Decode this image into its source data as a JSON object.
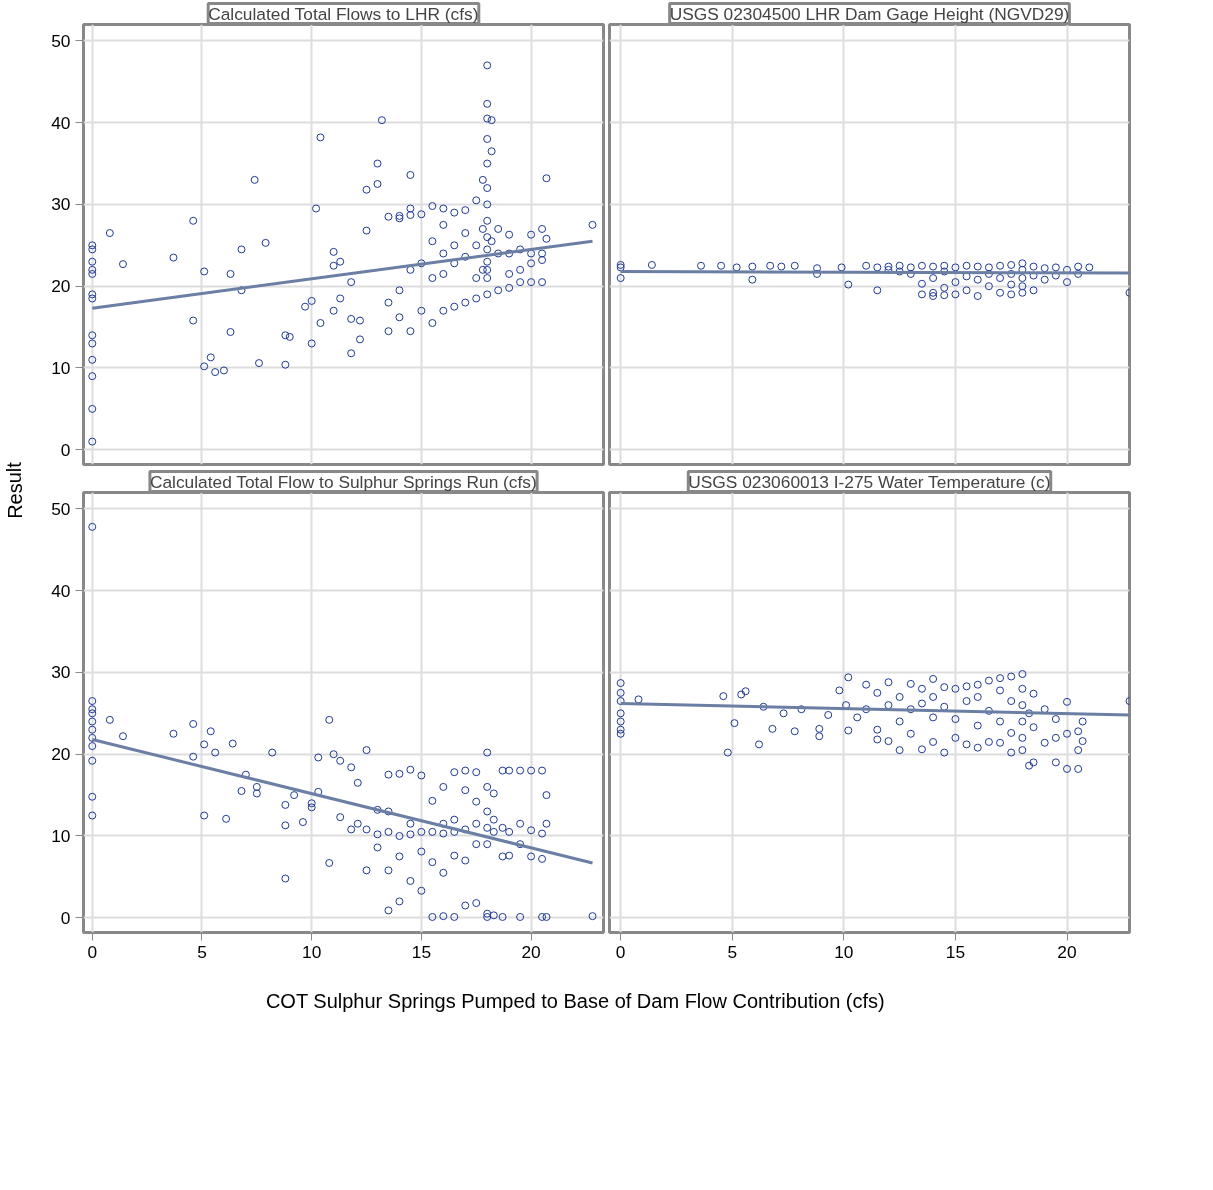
{
  "chart_data": [
    {
      "type": "scatter",
      "title": "Calculated Total Flows to LHR (cfs)",
      "ylabel": "Result",
      "marker": "circle",
      "xlim": [
        -0.4,
        23.3
      ],
      "ylim": [
        -1.8,
        52
      ],
      "xticks": [
        0,
        5,
        10,
        15,
        20
      ],
      "yticks": [
        0,
        10,
        20,
        30,
        40,
        50
      ],
      "grid": true,
      "tick_labels": "y",
      "series": [
        {
          "color": "#1f3a93",
          "x": [
            0,
            0,
            0,
            0,
            0,
            0,
            0,
            0,
            0,
            0,
            0,
            0,
            0,
            0.8,
            1.4,
            3.7,
            4.6,
            4.6,
            5.1,
            5.1,
            5.4,
            5.6,
            6,
            6.3,
            6.3,
            6.8,
            6.8,
            7.4,
            7.6,
            7.9,
            8.8,
            8.8,
            9,
            9.7,
            10,
            10,
            10.2,
            10.4,
            10.4,
            11,
            11,
            11,
            11.3,
            11.3,
            11.8,
            11.8,
            11.8,
            12.2,
            12.2,
            12.5,
            12.5,
            13,
            13,
            13.2,
            13.5,
            13.5,
            13.5,
            14,
            14,
            14,
            14,
            14.5,
            14.5,
            14.5,
            14.5,
            14.5,
            15,
            15,
            15,
            15.5,
            15.5,
            15.5,
            15.5,
            16,
            16,
            16,
            16,
            16,
            16.5,
            16.5,
            16.5,
            16.5,
            17,
            17,
            17,
            17,
            17.5,
            17.5,
            17.5,
            17.5,
            17.8,
            17.8,
            17.8,
            18,
            18,
            18,
            18,
            18,
            18,
            18,
            18,
            18,
            18,
            18,
            18,
            18,
            18,
            18.2,
            18.2,
            18.2,
            18.5,
            18.5,
            18.5,
            19,
            19,
            19,
            19,
            19.5,
            19.5,
            19.5,
            20,
            20,
            20,
            20,
            20.5,
            20.5,
            20.5,
            20.5,
            20.7,
            20.7,
            22.8
          ],
          "values": [
            25,
            24.5,
            23,
            22,
            21.5,
            19,
            18.5,
            14,
            13,
            11,
            9,
            5,
            1,
            26.5,
            22.7,
            23.5,
            28,
            15.8,
            21.8,
            10.2,
            11.3,
            9.5,
            9.7,
            21.5,
            14.4,
            19.5,
            24.5,
            33,
            10.6,
            25.3,
            14,
            10.4,
            13.8,
            17.5,
            18.2,
            13,
            29.5,
            38.2,
            15.5,
            24.2,
            22.5,
            17,
            23,
            18.5,
            20.5,
            11.8,
            16,
            15.8,
            13.5,
            31.8,
            26.8,
            35,
            32.5,
            40.3,
            28.5,
            18,
            14.5,
            28.3,
            28.6,
            19.5,
            16.2,
            28.7,
            29.5,
            33.6,
            22,
            14.5,
            28.8,
            22.8,
            17,
            29.8,
            25.5,
            21,
            15.5,
            29.5,
            27.5,
            24,
            21.5,
            17,
            29,
            25,
            22.8,
            17.5,
            29.3,
            26.5,
            23.6,
            18,
            30.5,
            25,
            21,
            18.5,
            33,
            27,
            22,
            47,
            42.3,
            40.5,
            38,
            35,
            32,
            30,
            28,
            26,
            24.5,
            23,
            22,
            21,
            19,
            40.3,
            36.5,
            25.5,
            24,
            19.5,
            27,
            26.3,
            24,
            21.5,
            19.8,
            24.5,
            22,
            20.5,
            26.3,
            24,
            20.5,
            22.8,
            27,
            24,
            20.5,
            23.2,
            33.2,
            25.8,
            27.5
          ]
        },
        {
          "type": "line",
          "color": "#6a7fa3",
          "x": [
            0,
            22.8
          ],
          "values": [
            17.3,
            25.5
          ],
          "marker": "none"
        }
      ]
    },
    {
      "type": "scatter",
      "title": "USGS 02304500 LHR Dam Gage Height (NGVD29)",
      "marker": "circle",
      "xlim": [
        -0.5,
        22.8
      ],
      "ylim": [
        -1.8,
        52
      ],
      "xticks": [
        0,
        5,
        10,
        15,
        20
      ],
      "yticks": [
        0,
        10,
        20,
        30,
        40,
        50
      ],
      "grid": true,
      "tick_labels": false,
      "series": [
        {
          "color": "#1f3a93",
          "x": [
            0,
            0,
            0,
            1.4,
            3.6,
            4.5,
            5.2,
            5.9,
            5.9,
            6.7,
            7.2,
            7.8,
            8.8,
            8.8,
            9.9,
            10.2,
            11,
            11.5,
            11.5,
            12,
            12,
            12.5,
            12.5,
            13,
            13,
            13.5,
            13.5,
            13.5,
            14,
            14,
            14,
            14,
            14.5,
            14.5,
            14.5,
            14.5,
            15,
            15,
            15,
            15.5,
            15.5,
            15.5,
            16,
            16,
            16,
            16.5,
            16.5,
            16.5,
            17,
            17,
            17,
            17.5,
            17.5,
            17.5,
            17.5,
            18,
            18,
            18,
            18,
            18,
            18.5,
            18.5,
            18.5,
            19,
            19,
            19.5,
            19.5,
            20,
            20,
            20.5,
            20.5,
            21,
            22.8
          ],
          "values": [
            22.6,
            22.3,
            21,
            22.6,
            22.5,
            22.5,
            22.3,
            20.8,
            22.4,
            22.5,
            22.4,
            22.5,
            22.2,
            21.5,
            22.3,
            20.2,
            22.5,
            19.5,
            22.3,
            22.4,
            22,
            21.8,
            22.5,
            22.3,
            21.5,
            22.5,
            20.3,
            19,
            22.4,
            21,
            19.2,
            18.8,
            22.5,
            21.8,
            19.8,
            18.9,
            22.3,
            20.5,
            19,
            22.5,
            21.2,
            19.5,
            22.4,
            20.8,
            18.8,
            22.3,
            21.5,
            20,
            22.5,
            21,
            19.2,
            22.6,
            21.5,
            20.2,
            19,
            22.8,
            22,
            21,
            20,
            19.2,
            22.4,
            21.3,
            19.5,
            22.2,
            20.8,
            22.3,
            21.3,
            22,
            20.5,
            22.4,
            21.5,
            22.3,
            19.2
          ]
        },
        {
          "type": "line",
          "color": "#6a7fa3",
          "x": [
            0,
            22.8
          ],
          "values": [
            21.8,
            21.6
          ],
          "marker": "none"
        }
      ]
    },
    {
      "type": "scatter",
      "title": "Calculated Total Flow to Sulphur Springs Run (cfs)",
      "marker": "circle",
      "xlabel": "COT Sulphur Springs Pumped to Base of Dam Flow Contribution (cfs)",
      "xlim": [
        -0.4,
        23.3
      ],
      "ylim": [
        -1.8,
        52
      ],
      "xticks": [
        0,
        5,
        10,
        15,
        20
      ],
      "yticks": [
        0,
        10,
        20,
        30,
        40,
        50
      ],
      "grid": true,
      "series": [
        {
          "color": "#1f3a93",
          "x": [
            0,
            0,
            0,
            0,
            0,
            0,
            0,
            0,
            0,
            0,
            0,
            0.8,
            1.4,
            3.7,
            4.6,
            4.6,
            5.1,
            5.1,
            5.4,
            5.6,
            6.1,
            6.4,
            6.8,
            7,
            7.5,
            7.5,
            8.2,
            8.8,
            8.8,
            8.8,
            9.2,
            9.6,
            10,
            10,
            10.3,
            10.3,
            10.8,
            10.8,
            11,
            11.3,
            11.3,
            11.8,
            11.8,
            12.1,
            12.1,
            12.5,
            12.5,
            12.5,
            13,
            13,
            13,
            13.5,
            13.5,
            13.5,
            13.5,
            13.5,
            14,
            14,
            14,
            14,
            14.5,
            14.5,
            14.5,
            14.5,
            15,
            15,
            15,
            15,
            15.5,
            15.5,
            15.5,
            15.5,
            16,
            16,
            16,
            16,
            16,
            16.5,
            16.5,
            16.5,
            16.5,
            16.5,
            17,
            17,
            17,
            17,
            17,
            17.5,
            17.5,
            17.5,
            17.5,
            17.5,
            18,
            18,
            18,
            18,
            18,
            18,
            18,
            18.3,
            18.3,
            18.3,
            18.3,
            18.7,
            18.7,
            18.7,
            18.7,
            19,
            19,
            19,
            19.5,
            19.5,
            19.5,
            19.5,
            20,
            20,
            20,
            20.5,
            20.5,
            20.5,
            20.5,
            20.7,
            20.7,
            20.7,
            22.8
          ],
          "values": [
            47.8,
            26.5,
            25.5,
            25,
            24,
            23,
            22,
            21,
            19.2,
            14.8,
            12.5,
            24.2,
            22.2,
            22.5,
            23.7,
            19.7,
            21.2,
            12.5,
            22.8,
            20.2,
            12.1,
            21.3,
            15.5,
            17.5,
            16,
            15.2,
            20.2,
            13.8,
            11.3,
            4.8,
            15,
            11.7,
            14,
            13.5,
            19.6,
            15.4,
            6.7,
            24.2,
            20,
            19.2,
            12.3,
            18.4,
            10.8,
            16.5,
            11.5,
            20.5,
            10.8,
            5.8,
            13.2,
            10.2,
            8.6,
            17.5,
            13,
            10.5,
            5.8,
            0.9,
            17.6,
            10,
            7.5,
            2,
            18.1,
            11.5,
            10.2,
            4.5,
            17.4,
            10.5,
            8.1,
            3.3,
            14.3,
            10.5,
            6.8,
            0.1,
            16,
            11.5,
            10.3,
            5.5,
            0.2,
            17.8,
            12,
            10.5,
            7.6,
            0.1,
            18,
            15.6,
            10.8,
            7,
            1.5,
            17.8,
            14.2,
            11.5,
            9,
            1.8,
            20.2,
            16,
            13,
            11,
            9,
            0.5,
            0.1,
            15.2,
            12,
            10.5,
            0.3,
            18,
            11,
            7.5,
            0.1,
            18,
            10.5,
            7.6,
            18,
            11.5,
            9,
            0.1,
            18,
            10.7,
            7.5,
            18,
            10.3,
            7.2,
            0.1,
            15,
            11.5,
            0.1,
            0.2
          ]
        },
        {
          "type": "line",
          "color": "#6a7fa3",
          "x": [
            0,
            22.8
          ],
          "values": [
            21.8,
            6.7
          ],
          "marker": "none"
        }
      ]
    },
    {
      "type": "scatter",
      "title": "USGS 023060013 I-275 Water Temperature (c)",
      "marker": "circle",
      "xlim": [
        -0.5,
        22.8
      ],
      "ylim": [
        -1.8,
        52
      ],
      "xticks": [
        0,
        5,
        10,
        15,
        20
      ],
      "yticks": [
        0,
        10,
        20,
        30,
        40,
        50
      ],
      "grid": true,
      "tick_labels": "x",
      "series": [
        {
          "color": "#1f3a93",
          "x": [
            0,
            0,
            0,
            0,
            0,
            0,
            0,
            0.8,
            4.6,
            4.8,
            5.1,
            5.4,
            5.6,
            6.2,
            6.4,
            6.8,
            7.3,
            7.8,
            8.1,
            8.9,
            8.9,
            9.3,
            9.8,
            10.1,
            10.2,
            10.2,
            10.6,
            11,
            11,
            11.5,
            11.5,
            11.5,
            12,
            12,
            12,
            12.5,
            12.5,
            12.5,
            13,
            13,
            13,
            13.5,
            13.5,
            13.5,
            14,
            14,
            14,
            14,
            14.5,
            14.5,
            14.5,
            15,
            15,
            15,
            15.5,
            15.5,
            15.5,
            16,
            16,
            16,
            16,
            16.5,
            16.5,
            16.5,
            17,
            17,
            17,
            17,
            17.5,
            17.5,
            17.5,
            17.5,
            18,
            18,
            18,
            18,
            18,
            18,
            18.3,
            18.3,
            18.5,
            18.5,
            18.5,
            19,
            19,
            19.5,
            19.5,
            19.5,
            20,
            20,
            20,
            20.5,
            20.5,
            20.5,
            20.7,
            20.7,
            22.8
          ],
          "values": [
            28.7,
            27.5,
            26.5,
            25,
            24,
            23,
            22.5,
            26.7,
            27.1,
            20.2,
            23.8,
            27.3,
            27.7,
            21.2,
            25.8,
            23.1,
            25,
            22.8,
            25.5,
            23.1,
            22.2,
            24.8,
            27.8,
            26,
            29.4,
            22.9,
            24.5,
            28.5,
            25.5,
            27.5,
            21.8,
            23,
            28.8,
            26,
            21.6,
            27,
            24,
            20.5,
            28.6,
            25.5,
            22.5,
            28,
            26.2,
            20.6,
            29.2,
            27,
            24.5,
            21.5,
            28.2,
            25.8,
            20.2,
            28,
            24.3,
            22,
            28.3,
            26.5,
            21.2,
            28.5,
            27,
            23.5,
            20.8,
            29,
            25.3,
            21.5,
            29.3,
            27.8,
            24,
            21.4,
            29.5,
            26.5,
            22.6,
            20.2,
            29.8,
            28,
            26,
            24,
            22,
            20.5,
            25,
            18.6,
            27.4,
            23.3,
            19,
            25.5,
            21.4,
            24.3,
            19,
            22,
            26.4,
            22.5,
            18.2,
            22.8,
            20.5,
            18.2,
            24,
            21.6,
            26.5
          ]
        },
        {
          "type": "line",
          "color": "#6a7fa3",
          "x": [
            0,
            22.8
          ],
          "values": [
            26.2,
            24.8
          ],
          "marker": "none"
        }
      ]
    }
  ]
}
